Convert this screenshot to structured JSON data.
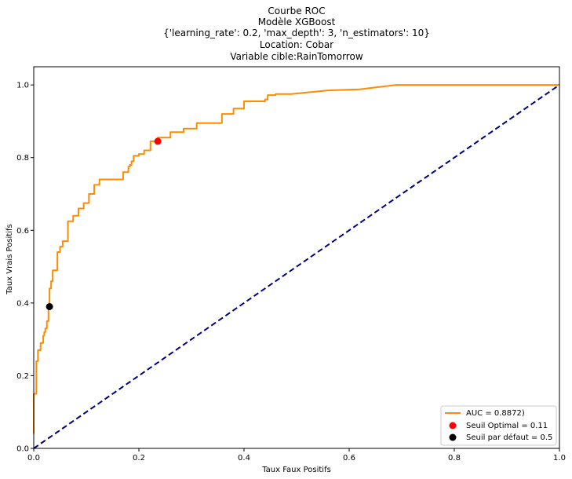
{
  "chart_data": {
    "type": "line",
    "title_lines": [
      "Courbe ROC",
      "Modèle XGBoost",
      "{'learning_rate': 0.2, 'max_depth': 3, 'n_estimators': 10}",
      "Location: Cobar",
      "Variable cible:RainTomorrow"
    ],
    "xlabel": "Taux Faux Positifs",
    "ylabel": "Taux Vrais Positifs",
    "xlim": [
      0,
      1
    ],
    "ylim": [
      0,
      1.05
    ],
    "x_ticks": [
      "0.0",
      "0.2",
      "0.4",
      "0.6",
      "0.8",
      "1.0"
    ],
    "y_ticks": [
      "0.0",
      "0.2",
      "0.4",
      "0.6",
      "0.8",
      "1.0"
    ],
    "grid": false,
    "legend_position": "lower-right",
    "series": [
      {
        "name": "AUC = 0.8872)",
        "color": "#ff8c00",
        "style": "solid",
        "x": [
          0,
          0,
          0.005,
          0.005,
          0.008,
          0.008,
          0.013,
          0.013,
          0.018,
          0.018,
          0.02,
          0.02,
          0.022,
          0.022,
          0.025,
          0.025,
          0.028,
          0.028,
          0.03,
          0.03,
          0.033,
          0.033,
          0.036,
          0.036,
          0.045,
          0.045,
          0.05,
          0.05,
          0.055,
          0.055,
          0.065,
          0.065,
          0.075,
          0.075,
          0.085,
          0.085,
          0.095,
          0.095,
          0.105,
          0.105,
          0.115,
          0.115,
          0.125,
          0.125,
          0.17,
          0.17,
          0.18,
          0.18,
          0.183,
          0.183,
          0.186,
          0.186,
          0.19,
          0.19,
          0.2,
          0.2,
          0.21,
          0.21,
          0.222,
          0.222,
          0.236,
          0.236,
          0.26,
          0.26,
          0.285,
          0.285,
          0.31,
          0.31,
          0.358,
          0.358,
          0.38,
          0.38,
          0.4,
          0.4,
          0.44,
          0.44,
          0.445,
          0.445,
          0.46,
          0.46,
          0.49,
          0.56,
          0.62,
          0.69,
          1.0
        ],
        "y": [
          0.04,
          0.15,
          0.15,
          0.24,
          0.24,
          0.27,
          0.27,
          0.29,
          0.29,
          0.31,
          0.31,
          0.32,
          0.32,
          0.33,
          0.33,
          0.35,
          0.35,
          0.39,
          0.39,
          0.44,
          0.44,
          0.46,
          0.46,
          0.49,
          0.49,
          0.54,
          0.54,
          0.555,
          0.555,
          0.57,
          0.57,
          0.625,
          0.625,
          0.64,
          0.64,
          0.66,
          0.66,
          0.675,
          0.675,
          0.7,
          0.7,
          0.725,
          0.725,
          0.74,
          0.74,
          0.76,
          0.76,
          0.775,
          0.775,
          0.78,
          0.78,
          0.79,
          0.79,
          0.805,
          0.805,
          0.81,
          0.81,
          0.82,
          0.82,
          0.845,
          0.845,
          0.855,
          0.855,
          0.87,
          0.87,
          0.88,
          0.88,
          0.895,
          0.895,
          0.92,
          0.92,
          0.935,
          0.935,
          0.955,
          0.955,
          0.96,
          0.96,
          0.972,
          0.972,
          0.975,
          0.975,
          0.985,
          0.988,
          1.0,
          1.0
        ]
      },
      {
        "name": "",
        "color": "#000080",
        "style": "dashed",
        "x": [
          0,
          1
        ],
        "y": [
          0,
          1
        ]
      }
    ],
    "points": [
      {
        "name": "Seuil Optimal = 0.11",
        "x": 0.236,
        "y": 0.845,
        "color": "#ff0000"
      },
      {
        "name": "Seuil par défaut = 0.5",
        "x": 0.03,
        "y": 0.39,
        "color": "#000000"
      }
    ]
  }
}
